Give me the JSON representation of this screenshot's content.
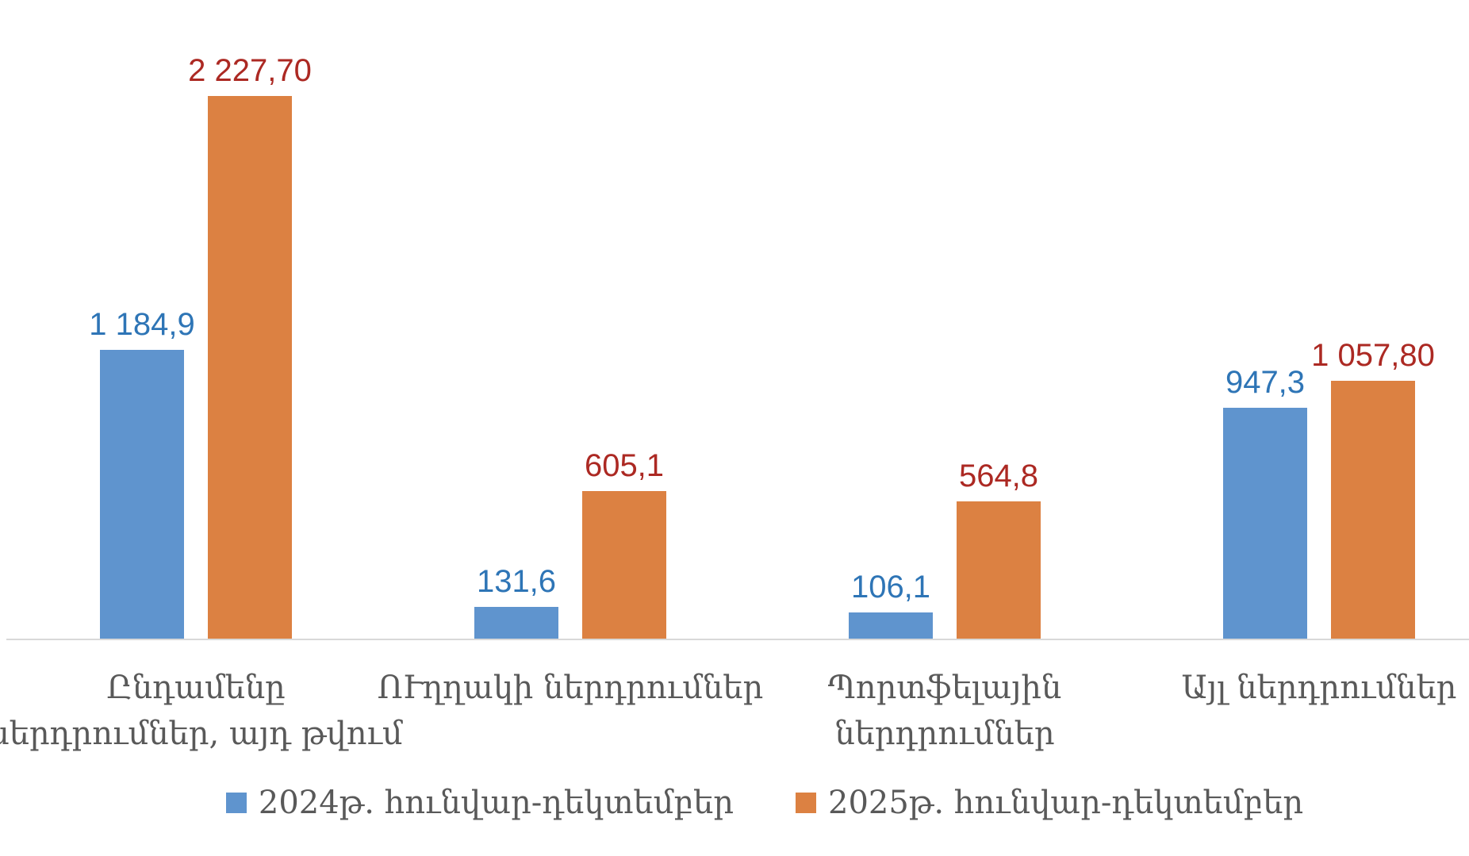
{
  "chart_data": {
    "type": "bar",
    "categories": [
      "Ընդամենը ներդրումներ, այդ թվում",
      "ՈՒղղակի ներդրումներ",
      "Պորտֆելային ներդրումներ",
      "Այլ ներդրումներ"
    ],
    "category_lines": [
      [
        "Ընդամենը",
        "ներդրումներ, այդ թվում"
      ],
      [
        "ՈՒղղակի ներդրումներ"
      ],
      [
        "Պորտֆելային",
        "ներդրումներ"
      ],
      [
        "Այլ ներդրումներ"
      ]
    ],
    "series": [
      {
        "name": "2024թ. հունվար-դեկտեմբեր",
        "color": "#5f94ce",
        "label_color": "#2e75b6",
        "values": [
          1184.9,
          131.6,
          106.1,
          947.3
        ],
        "labels": [
          "1 184,9",
          "131,6",
          "106,1",
          "947,3"
        ]
      },
      {
        "name": "2025թ. հունվար-դեկտեմբեր",
        "color": "#dc8142",
        "label_color": "#ac2923",
        "values": [
          2227.7,
          605.1,
          564.8,
          1057.8
        ],
        "labels": [
          "2 227,70",
          "605,1",
          "564,8",
          "1 057,80"
        ]
      }
    ],
    "ylim": [
      0,
      2400
    ],
    "grid": false,
    "axis_line_color": "#d9d9d9",
    "legend_position": "bottom"
  }
}
